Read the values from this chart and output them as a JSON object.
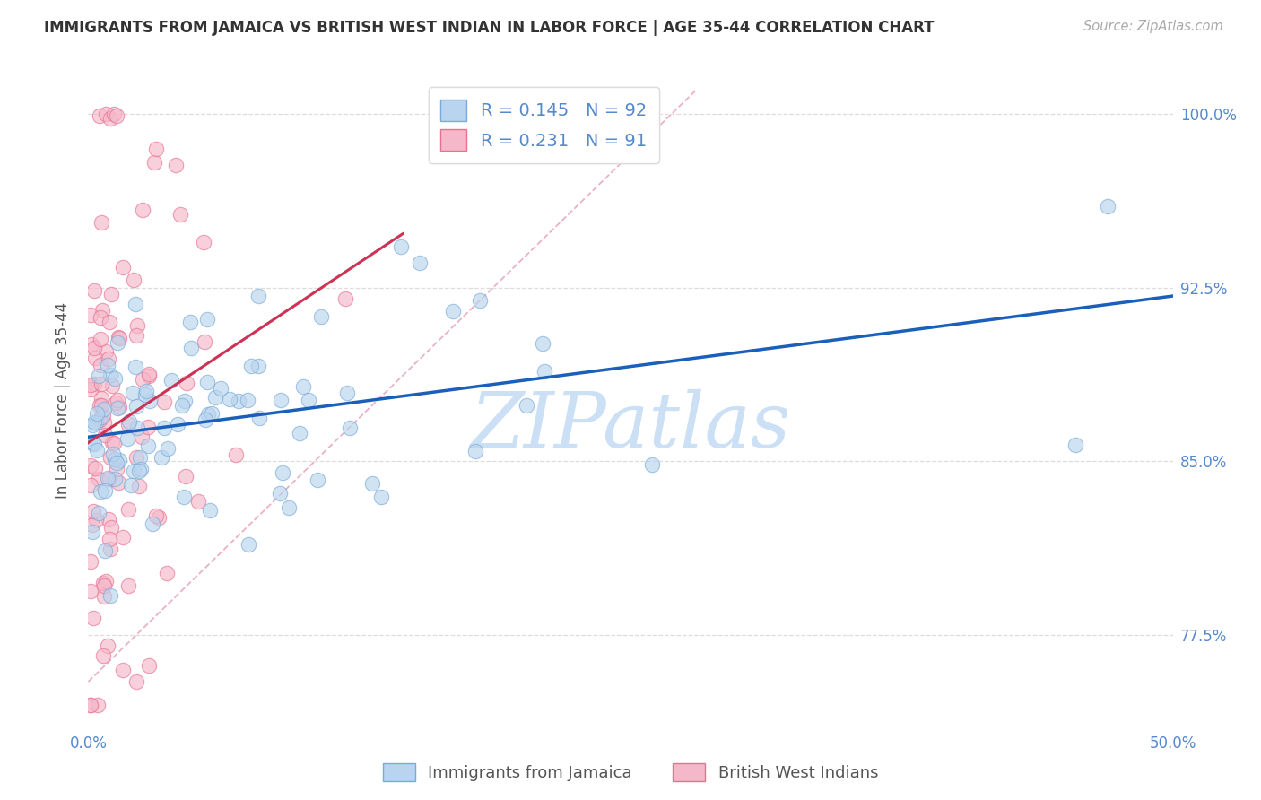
{
  "title": "IMMIGRANTS FROM JAMAICA VS BRITISH WEST INDIAN IN LABOR FORCE | AGE 35-44 CORRELATION CHART",
  "source": "Source: ZipAtlas.com",
  "ylabel": "In Labor Force | Age 35-44",
  "xlim": [
    0.0,
    0.5
  ],
  "ylim": [
    0.735,
    1.018
  ],
  "xticks": [
    0.0,
    0.1,
    0.2,
    0.3,
    0.4,
    0.5
  ],
  "xticklabels": [
    "0.0%",
    "",
    "",
    "",
    "",
    "50.0%"
  ],
  "yticks": [
    0.775,
    0.85,
    0.925,
    1.0
  ],
  "yticklabels": [
    "77.5%",
    "85.0%",
    "92.5%",
    "100.0%"
  ],
  "blue_R": 0.145,
  "blue_N": 92,
  "pink_R": 0.231,
  "pink_N": 91,
  "blue_color": "#b8d4ee",
  "pink_color": "#f5b8ca",
  "blue_edge_color": "#7aaad8",
  "pink_edge_color": "#e87090",
  "blue_line_color": "#1a5fba",
  "pink_line_color": "#cc3355",
  "ref_line_color": "#e8aabb",
  "legend_label_blue": "Immigrants from Jamaica",
  "legend_label_pink": "British West Indians",
  "title_color": "#333333",
  "axis_tick_color": "#5588cc",
  "grid_color": "#dddddd",
  "watermark": "ZIPatlas",
  "watermark_color": "#cce0f5"
}
